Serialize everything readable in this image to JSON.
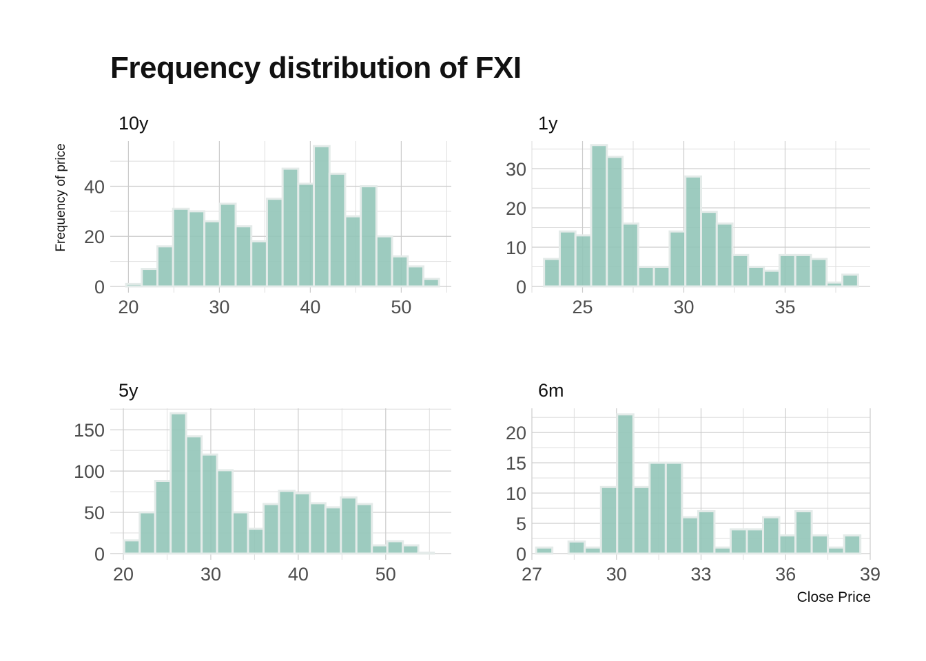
{
  "title": "Frequency distribution of FXI",
  "ylabel": "Frequency of price",
  "xlabel": "Close Price",
  "bar_color": "#92c5b8",
  "chart_data": [
    {
      "type": "bar",
      "title": "10y",
      "xlabel": "",
      "ylabel": "",
      "bin_start": 19.75,
      "bin_width": 1.72,
      "values": [
        1,
        7,
        16,
        31,
        30,
        26,
        33,
        24,
        18,
        35,
        47,
        41,
        56,
        45,
        28,
        40,
        20,
        12,
        8,
        3
      ],
      "xlim": [
        18,
        55.5
      ],
      "ylim": [
        0,
        58
      ],
      "xticks": [
        20,
        30,
        40,
        50
      ],
      "yticks": [
        0,
        20,
        40
      ],
      "grid": true
    },
    {
      "type": "bar",
      "title": "1y",
      "xlabel": "",
      "ylabel": "",
      "bin_start": 23.1,
      "bin_width": 0.775,
      "values": [
        7,
        14,
        13,
        36,
        33,
        16,
        5,
        5,
        14,
        28,
        19,
        16,
        8,
        5,
        4,
        8,
        8,
        7,
        1,
        3
      ],
      "xlim": [
        22.5,
        39.2
      ],
      "ylim": [
        0,
        37
      ],
      "xticks": [
        25,
        30,
        35
      ],
      "yticks": [
        0,
        10,
        20,
        30
      ],
      "grid": true
    },
    {
      "type": "bar",
      "title": "5y",
      "xlabel": "",
      "ylabel": "",
      "bin_start": 20.1,
      "bin_width": 1.77,
      "values": [
        16,
        50,
        88,
        170,
        142,
        120,
        101,
        50,
        30,
        60,
        76,
        73,
        61,
        56,
        68,
        60,
        10,
        15,
        10,
        1
      ],
      "xlim": [
        18.5,
        57.5
      ],
      "ylim": [
        0,
        176
      ],
      "xticks": [
        20,
        30,
        40,
        50
      ],
      "yticks": [
        0,
        50,
        100,
        150
      ],
      "grid": true
    },
    {
      "type": "bar",
      "title": "6m",
      "xlabel": "",
      "ylabel": "",
      "bin_start": 27.15,
      "bin_width": 0.575,
      "values": [
        1,
        0,
        2,
        1,
        11,
        23,
        11,
        15,
        15,
        6,
        7,
        1,
        4,
        4,
        6,
        3,
        7,
        3,
        1,
        3
      ],
      "xlim": [
        27,
        39
      ],
      "ylim": [
        0,
        24
      ],
      "xticks": [
        27,
        30,
        33,
        36,
        39
      ],
      "yticks": [
        0,
        5,
        10,
        15,
        20
      ],
      "grid": true
    }
  ]
}
